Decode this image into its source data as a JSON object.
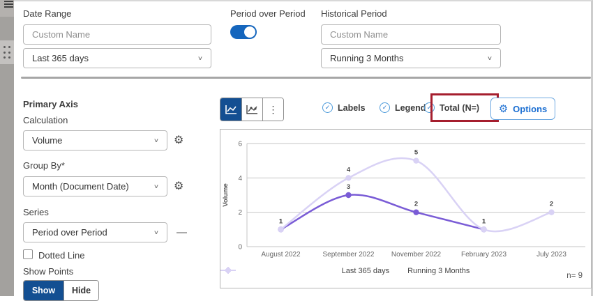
{
  "left_rail": {
    "menu_icon": "hamburger-icon",
    "drag_icon": "drag-handle-dots"
  },
  "top_section": {
    "date_range": {
      "label": "Date Range",
      "custom_name_placeholder": "Custom Name",
      "selected": "Last 365 days"
    },
    "period_over_period": {
      "label": "Period over Period",
      "toggle_on": true
    },
    "historical_period": {
      "label": "Historical Period",
      "custom_name_placeholder": "Custom Name",
      "selected": "Running 3 Months"
    }
  },
  "left_panel": {
    "primary_axis_label": "Primary Axis",
    "calculation": {
      "label": "Calculation",
      "selected": "Volume"
    },
    "group_by": {
      "label": "Group By*",
      "selected": "Month (Document Date)"
    },
    "series": {
      "label": "Series",
      "selected": "Period over Period",
      "remove_glyph": "—"
    },
    "dotted_line_label": "Dotted Line",
    "show_points_label": "Show Points",
    "show_label": "Show",
    "hide_label": "Hide"
  },
  "toolbar": {
    "chart_type_icons": [
      "line-chart-icon",
      "line-points-chart-icon",
      "more-options-ellipsis"
    ],
    "labels_label": "Labels",
    "legend_label": "Legend",
    "total_label": "Total (N=)",
    "options_label": "Options",
    "check_glyph": "✓"
  },
  "chart_data": {
    "type": "line",
    "categories": [
      "August 2022",
      "September 2022",
      "November 2022",
      "February 2023",
      "July 2023"
    ],
    "series": [
      {
        "name": "Last 365 days",
        "values": [
          1,
          3,
          2,
          1,
          null
        ],
        "color": "#7a5cd6",
        "marker_color": "#7a5cd6"
      },
      {
        "name": "Running 3 Months",
        "values": [
          1,
          4,
          5,
          1,
          2
        ],
        "color": "#d9d2f5",
        "marker_color": "#d9d2f5"
      }
    ],
    "title": "",
    "xlabel": "",
    "ylabel": "Volume",
    "yticks": [
      0,
      2,
      4,
      6
    ],
    "ylim": [
      0,
      6
    ],
    "grid": true,
    "legend_position": "bottom",
    "n_label": "n= 9"
  },
  "colors": {
    "primary_navy": "#134f92",
    "toggle_blue": "#1566bd",
    "check_blue": "#4f9cdb",
    "options_blue": "#1c6fd2",
    "series1_purple": "#7a5cd6",
    "series2_lavender": "#d9d2f5",
    "annotation_red": "#a51e2e",
    "grid_gray": "#c6c6c6"
  }
}
